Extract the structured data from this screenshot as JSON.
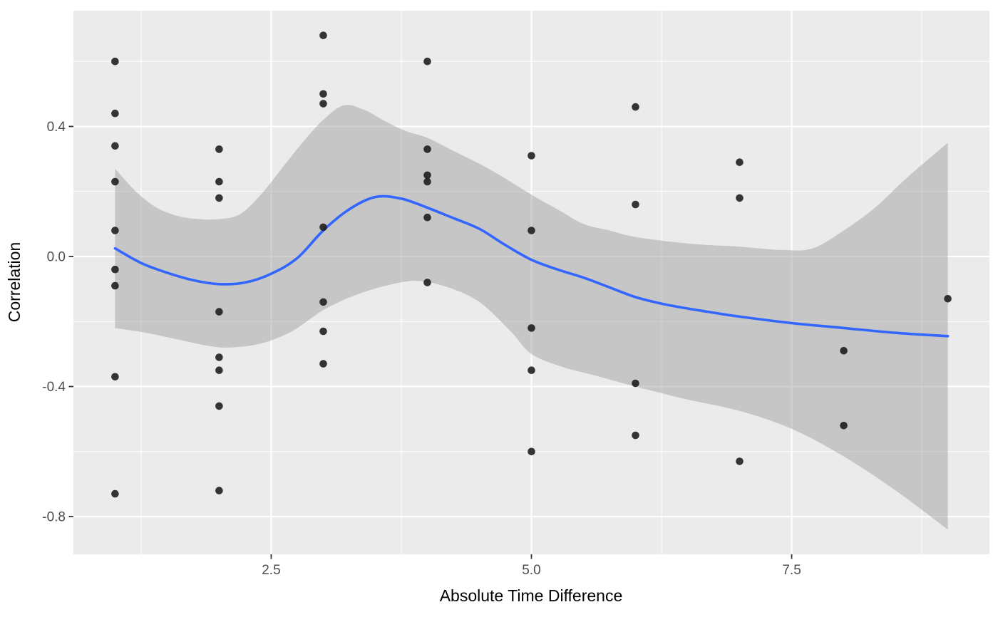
{
  "figure": {
    "background": "#FFFFFF"
  },
  "chart_data": {
    "type": "scatter",
    "title": "",
    "xlabel": "Absolute Time Difference",
    "ylabel": "Correlation",
    "xlim": [
      0.6,
      9.4
    ],
    "ylim": [
      -0.916,
      0.756
    ],
    "grid": true,
    "legend_position": "none",
    "x_ticks": [
      {
        "v": 2.5,
        "label": "2.5"
      },
      {
        "v": 5.0,
        "label": "5.0"
      },
      {
        "v": 7.5,
        "label": "7.5"
      }
    ],
    "y_ticks": [
      {
        "v": 0.4,
        "label": "0.4"
      },
      {
        "v": 0.0,
        "label": "0.0"
      },
      {
        "v": -0.4,
        "label": "-0.4"
      },
      {
        "v": -0.8,
        "label": "-0.8"
      }
    ],
    "x_minor": [
      1.25,
      3.75,
      6.25,
      8.75
    ],
    "y_minor": [
      0.6,
      0.2,
      -0.2,
      -0.6
    ],
    "points": [
      [
        1,
        0.6
      ],
      [
        1,
        0.44
      ],
      [
        1,
        0.34
      ],
      [
        1,
        0.23
      ],
      [
        1,
        0.08
      ],
      [
        1,
        -0.04
      ],
      [
        1,
        -0.09
      ],
      [
        1,
        -0.37
      ],
      [
        1,
        -0.73
      ],
      [
        2,
        0.33
      ],
      [
        2,
        0.23
      ],
      [
        2,
        0.18
      ],
      [
        2,
        -0.17
      ],
      [
        2,
        -0.31
      ],
      [
        2,
        -0.35
      ],
      [
        2,
        -0.46
      ],
      [
        2,
        -0.72
      ],
      [
        3,
        0.68
      ],
      [
        3,
        0.5
      ],
      [
        3,
        0.47
      ],
      [
        3,
        0.09
      ],
      [
        3,
        -0.14
      ],
      [
        3,
        -0.23
      ],
      [
        3,
        -0.33
      ],
      [
        4,
        0.6
      ],
      [
        4,
        0.33
      ],
      [
        4,
        0.25
      ],
      [
        4,
        0.23
      ],
      [
        4,
        0.12
      ],
      [
        4,
        -0.08
      ],
      [
        5,
        0.31
      ],
      [
        5,
        0.08
      ],
      [
        5,
        -0.22
      ],
      [
        5,
        -0.35
      ],
      [
        5,
        -0.6
      ],
      [
        6,
        0.46
      ],
      [
        6,
        0.16
      ],
      [
        6,
        -0.39
      ],
      [
        6,
        -0.55
      ],
      [
        7,
        0.29
      ],
      [
        7,
        0.18
      ],
      [
        7,
        -0.63
      ],
      [
        8,
        -0.29
      ],
      [
        8,
        -0.52
      ],
      [
        9,
        -0.13
      ]
    ],
    "smooth": {
      "name": "loess-fit",
      "color": "#3366FF",
      "width": 3.6,
      "line": [
        [
          1.0,
          0.025
        ],
        [
          1.25,
          -0.02
        ],
        [
          1.5,
          -0.05
        ],
        [
          1.75,
          -0.073
        ],
        [
          2.0,
          -0.085
        ],
        [
          2.25,
          -0.08
        ],
        [
          2.5,
          -0.053
        ],
        [
          2.75,
          -0.005
        ],
        [
          3.0,
          0.08
        ],
        [
          3.25,
          0.145
        ],
        [
          3.5,
          0.183
        ],
        [
          3.75,
          0.178
        ],
        [
          4.0,
          0.15
        ],
        [
          4.25,
          0.118
        ],
        [
          4.5,
          0.085
        ],
        [
          4.75,
          0.035
        ],
        [
          5.0,
          -0.01
        ],
        [
          5.25,
          -0.04
        ],
        [
          5.5,
          -0.065
        ],
        [
          5.75,
          -0.095
        ],
        [
          6.0,
          -0.125
        ],
        [
          6.25,
          -0.145
        ],
        [
          6.5,
          -0.16
        ],
        [
          6.75,
          -0.173
        ],
        [
          7.0,
          -0.185
        ],
        [
          7.5,
          -0.205
        ],
        [
          8.0,
          -0.22
        ],
        [
          8.5,
          -0.235
        ],
        [
          9.0,
          -0.245
        ]
      ]
    },
    "ribbon": {
      "name": "confidence-band",
      "fill": "#999999",
      "opacity": 0.45,
      "upper": [
        [
          1.0,
          0.27
        ],
        [
          1.2,
          0.2
        ],
        [
          1.4,
          0.15
        ],
        [
          1.6,
          0.125
        ],
        [
          1.8,
          0.115
        ],
        [
          2.0,
          0.115
        ],
        [
          2.2,
          0.13
        ],
        [
          2.4,
          0.19
        ],
        [
          2.6,
          0.27
        ],
        [
          2.8,
          0.35
        ],
        [
          3.0,
          0.42
        ],
        [
          3.2,
          0.465
        ],
        [
          3.4,
          0.45
        ],
        [
          3.6,
          0.415
        ],
        [
          3.8,
          0.385
        ],
        [
          4.0,
          0.365
        ],
        [
          4.25,
          0.325
        ],
        [
          4.5,
          0.285
        ],
        [
          4.75,
          0.24
        ],
        [
          5.0,
          0.19
        ],
        [
          5.25,
          0.145
        ],
        [
          5.5,
          0.1
        ],
        [
          5.75,
          0.08
        ],
        [
          6.0,
          0.06
        ],
        [
          6.5,
          0.04
        ],
        [
          7.0,
          0.03
        ],
        [
          7.4,
          0.02
        ],
        [
          7.7,
          0.025
        ],
        [
          8.0,
          0.08
        ],
        [
          8.3,
          0.15
        ],
        [
          8.6,
          0.24
        ],
        [
          9.0,
          0.35
        ]
      ],
      "lower": [
        [
          1.0,
          -0.22
        ],
        [
          1.3,
          -0.235
        ],
        [
          1.6,
          -0.255
        ],
        [
          1.9,
          -0.275
        ],
        [
          2.1,
          -0.28
        ],
        [
          2.4,
          -0.268
        ],
        [
          2.7,
          -0.23
        ],
        [
          3.0,
          -0.165
        ],
        [
          3.3,
          -0.12
        ],
        [
          3.6,
          -0.09
        ],
        [
          3.9,
          -0.075
        ],
        [
          4.2,
          -0.095
        ],
        [
          4.5,
          -0.14
        ],
        [
          4.8,
          -0.23
        ],
        [
          5.0,
          -0.3
        ],
        [
          5.3,
          -0.34
        ],
        [
          5.6,
          -0.365
        ],
        [
          6.0,
          -0.4
        ],
        [
          6.5,
          -0.44
        ],
        [
          7.0,
          -0.475
        ],
        [
          7.5,
          -0.53
        ],
        [
          8.0,
          -0.615
        ],
        [
          8.5,
          -0.72
        ],
        [
          9.0,
          -0.84
        ]
      ]
    },
    "style": {
      "panel_bg": "#EBEBEB",
      "grid_color": "#FFFFFF",
      "grid_major_width": 2,
      "grid_minor_width": 1,
      "tick_color": "#333333",
      "tick_label_color": "#4D4D4D",
      "axis_title_color": "#000000",
      "point_color": "#1A1A1A",
      "point_opacity": 0.88,
      "point_radius": 5.3
    }
  }
}
